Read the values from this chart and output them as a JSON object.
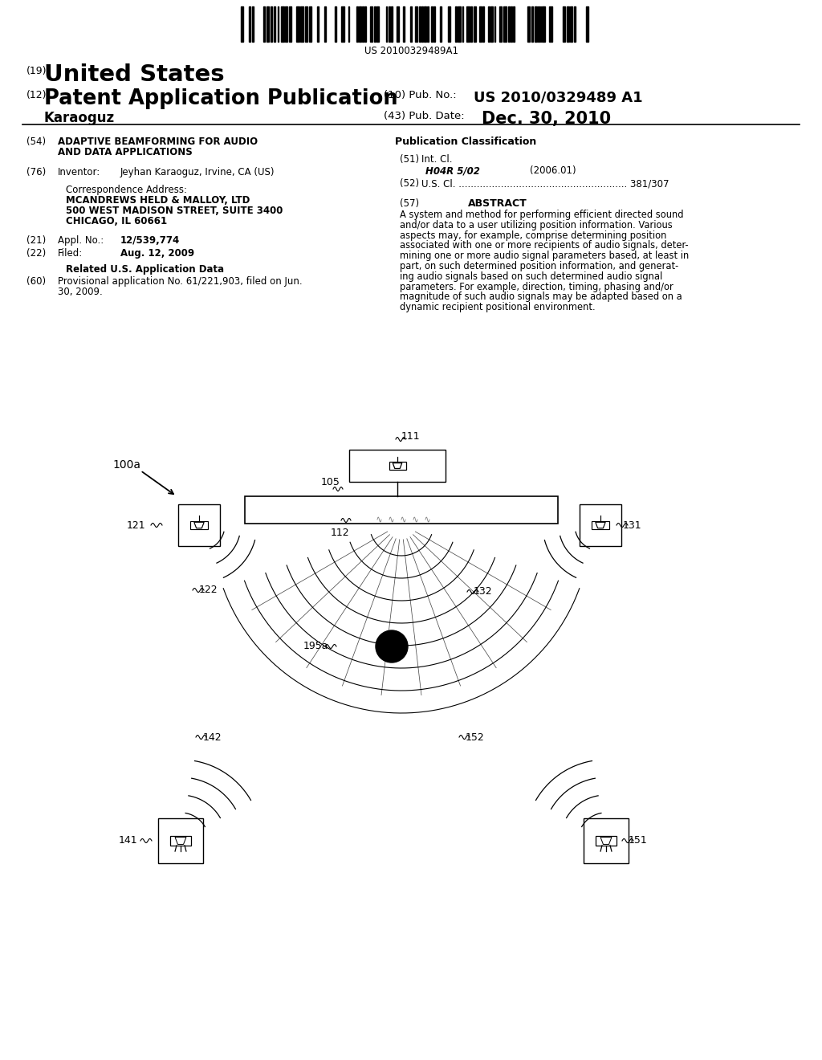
{
  "bg_color": "#ffffff",
  "barcode_text": "US 20100329489A1",
  "title_19": "(19)",
  "title_country": "United States",
  "title_12": "(12)",
  "title_type": "Patent Application Publication",
  "title_name": "Karaoguz",
  "pub_no_label": "(10) Pub. No.:",
  "pub_no_value": "US 2010/0329489 A1",
  "pub_date_label": "(43) Pub. Date:",
  "pub_date_value": "Dec. 30, 2010",
  "field54_label": "(54)",
  "field76_label": "(76)",
  "field76_name": "Inventor:",
  "field76_value": "Jeyhan Karaoguz, Irvine, CA (US)",
  "corr_title": "Correspondence Address:",
  "corr_line1": "MCANDREWS HELD & MALLOY, LTD",
  "corr_line2": "500 WEST MADISON STREET, SUITE 3400",
  "corr_line3": "CHICAGO, IL 60661",
  "field21_label": "(21)",
  "field21_name": "Appl. No.:",
  "field21_value": "12/539,774",
  "field22_label": "(22)",
  "field22_name": "Filed:",
  "field22_value": "Aug. 12, 2009",
  "related_title": "Related U.S. Application Data",
  "field60_label": "(60)",
  "pub_class_title": "Publication Classification",
  "field51_label": "(51)",
  "field51_name": "Int. Cl.",
  "field51_class": "H04R 5/02",
  "field51_year": "(2006.01)",
  "field52_label": "(52)",
  "field57_label": "(57)",
  "field57_title": "ABSTRACT",
  "diagram_label_100a": "100a",
  "diagram_label_111": "111",
  "diagram_label_105": "105",
  "diagram_label_112": "112",
  "diagram_label_121": "121",
  "diagram_label_122": "122",
  "diagram_label_131": "131",
  "diagram_label_132": "132",
  "diagram_label_141": "141",
  "diagram_label_142": "142",
  "diagram_label_151": "151",
  "diagram_label_152": "152",
  "diagram_label_195a": "195a"
}
